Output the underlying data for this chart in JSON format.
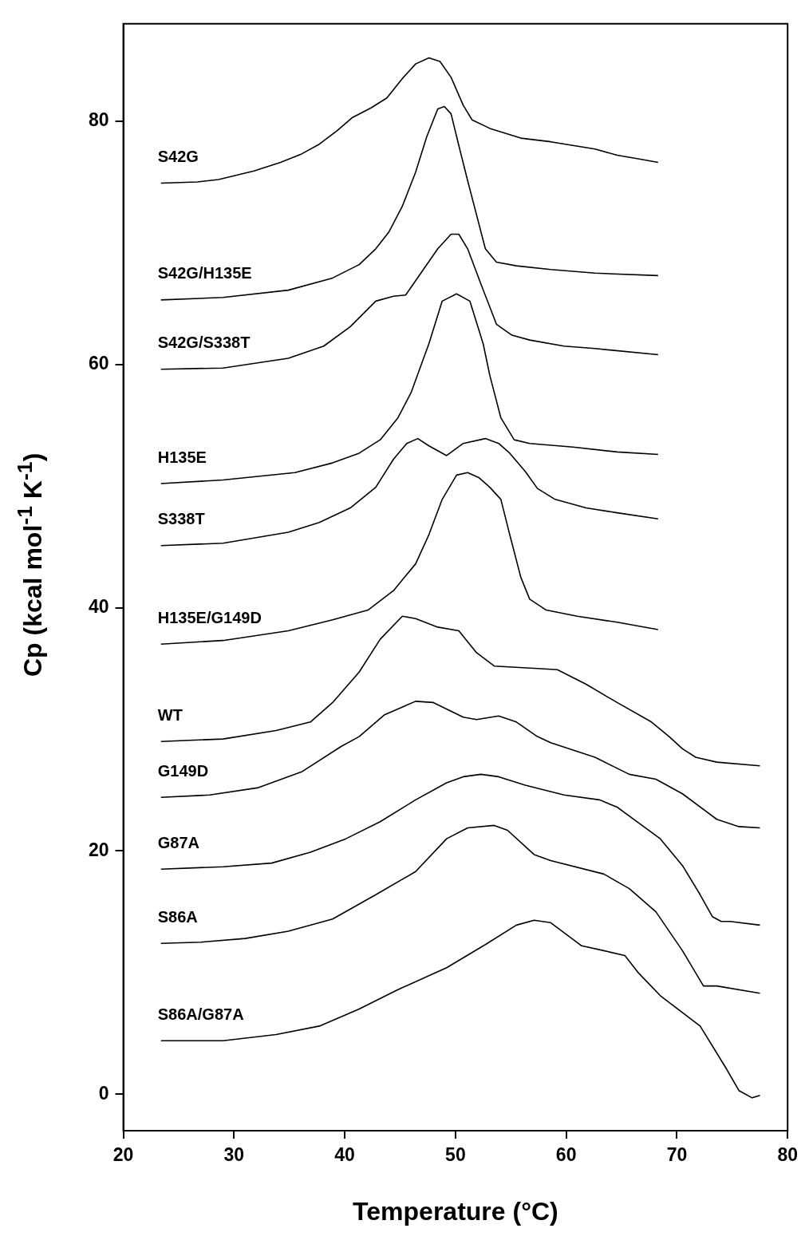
{
  "chart_data": {
    "type": "line",
    "xlabel": "Temperature (°C)",
    "ylabel": "Cp (kcal mol$^{-1}$ K$^{-1}$)",
    "xlim": [
      20,
      80
    ],
    "ylim": [
      -3,
      88
    ],
    "xticks": [
      20,
      30,
      40,
      50,
      60,
      70,
      80
    ],
    "yticks": [
      0,
      20,
      40,
      60,
      80
    ],
    "grid": false,
    "legend": false,
    "marker": "none",
    "line_style": "solid",
    "series": [
      {
        "name": "S42G",
        "color": "#000000",
        "x": [
          23.4,
          26.7,
          28.6,
          31.8,
          34.2,
          36.1,
          37.7,
          39.3,
          40.7,
          42.4,
          43.8,
          45.2,
          46.4,
          47.6,
          48.6,
          49.6,
          50.7,
          51.5,
          53.1,
          55.9,
          58.6,
          60.6,
          62.6,
          64.6,
          66.5,
          68.3
        ],
        "values": [
          74.9,
          75.0,
          75.2,
          75.9,
          76.6,
          77.3,
          78.1,
          79.2,
          80.3,
          81.1,
          81.9,
          83.5,
          84.7,
          85.2,
          84.9,
          83.6,
          81.3,
          80.1,
          79.4,
          78.6,
          78.3,
          78.0,
          77.7,
          77.2,
          76.9,
          76.6
        ]
      },
      {
        "name": "S42G/H135E",
        "color": "#000000",
        "x": [
          23.4,
          29.0,
          34.9,
          38.9,
          41.3,
          42.8,
          44.0,
          45.2,
          46.4,
          47.4,
          48.4,
          49.0,
          49.6,
          50.3,
          51.1,
          51.9,
          52.7,
          53.7,
          55.5,
          58.6,
          62.6,
          68.3
        ],
        "values": [
          65.3,
          65.5,
          66.1,
          67.1,
          68.2,
          69.5,
          70.9,
          73.0,
          75.8,
          78.7,
          81.0,
          81.2,
          80.6,
          78.0,
          75.1,
          72.3,
          69.5,
          68.4,
          68.1,
          67.8,
          67.5,
          67.3
        ]
      },
      {
        "name": "S42G/S338T",
        "color": "#000000",
        "x": [
          23.4,
          29.0,
          34.9,
          38.1,
          40.5,
          42.8,
          44.4,
          45.5,
          46.8,
          48.4,
          49.6,
          50.3,
          51.1,
          52.3,
          53.7,
          55.1,
          56.7,
          59.8,
          62.6,
          68.3
        ],
        "values": [
          59.6,
          59.7,
          60.5,
          61.5,
          63.1,
          65.2,
          65.6,
          65.7,
          67.4,
          69.5,
          70.7,
          70.7,
          69.5,
          66.6,
          63.3,
          62.4,
          62.0,
          61.5,
          61.3,
          60.8
        ]
      },
      {
        "name": "H135E",
        "color": "#000000",
        "x": [
          23.4,
          29.0,
          35.5,
          38.9,
          41.3,
          43.2,
          44.8,
          46.0,
          47.0,
          47.6,
          48.8,
          50.1,
          51.3,
          52.5,
          53.1,
          54.1,
          55.3,
          56.7,
          60.6,
          64.6,
          68.3
        ],
        "values": [
          50.2,
          50.5,
          51.1,
          51.9,
          52.7,
          53.8,
          55.6,
          57.7,
          60.2,
          61.7,
          65.2,
          65.8,
          65.2,
          61.7,
          59.1,
          55.6,
          53.8,
          53.5,
          53.2,
          52.8,
          52.6
        ]
      },
      {
        "name": "S338T",
        "color": "#000000",
        "x": [
          23.4,
          29.0,
          34.9,
          37.7,
          40.5,
          42.8,
          44.4,
          45.6,
          46.6,
          47.6,
          49.2,
          50.7,
          52.7,
          53.9,
          54.9,
          56.3,
          57.4,
          59.0,
          61.8,
          64.6,
          68.3
        ],
        "values": [
          45.1,
          45.3,
          46.2,
          47.0,
          48.2,
          49.9,
          52.2,
          53.5,
          53.9,
          53.3,
          52.5,
          53.5,
          53.9,
          53.5,
          52.7,
          51.2,
          49.8,
          48.9,
          48.2,
          47.8,
          47.3
        ]
      },
      {
        "name": "H135E/G149D",
        "color": "#000000",
        "x": [
          23.4,
          29.0,
          34.9,
          38.9,
          42.1,
          44.4,
          46.4,
          47.6,
          48.8,
          50.1,
          51.1,
          52.1,
          53.1,
          54.1,
          54.9,
          55.9,
          56.7,
          58.2,
          61.0,
          64.6,
          68.3
        ],
        "values": [
          37.0,
          37.3,
          38.1,
          39.0,
          39.8,
          41.4,
          43.6,
          46.0,
          48.9,
          50.9,
          51.1,
          50.7,
          49.9,
          48.9,
          46.0,
          42.5,
          40.7,
          39.8,
          39.3,
          38.8,
          38.2
        ]
      },
      {
        "name": "WT",
        "color": "#000000",
        "x": [
          23.4,
          29.0,
          33.8,
          36.9,
          38.9,
          41.3,
          43.2,
          45.2,
          46.4,
          48.4,
          50.3,
          51.9,
          53.5,
          57.4,
          59.2,
          61.8,
          64.6,
          67.7,
          69.3,
          70.5,
          71.7,
          73.6,
          77.5
        ],
        "values": [
          29.0,
          29.2,
          29.9,
          30.6,
          32.2,
          34.7,
          37.4,
          39.3,
          39.1,
          38.4,
          38.1,
          36.3,
          35.2,
          35.0,
          34.9,
          33.7,
          32.2,
          30.6,
          29.4,
          28.4,
          27.7,
          27.3,
          27.0
        ]
      },
      {
        "name": "G149D",
        "color": "#000000",
        "x": [
          23.4,
          27.8,
          32.2,
          36.1,
          39.7,
          41.3,
          43.6,
          46.4,
          48.0,
          50.7,
          51.9,
          53.9,
          55.5,
          57.4,
          58.6,
          62.6,
          65.7,
          68.1,
          70.5,
          73.6,
          75.6,
          77.5
        ],
        "values": [
          24.4,
          24.6,
          25.2,
          26.5,
          28.6,
          29.4,
          31.2,
          32.3,
          32.2,
          31.0,
          30.8,
          31.1,
          30.6,
          29.4,
          28.9,
          27.7,
          26.3,
          25.9,
          24.7,
          22.6,
          22.0,
          21.9
        ]
      },
      {
        "name": "G87A",
        "color": "#000000",
        "x": [
          23.4,
          29.0,
          33.4,
          36.9,
          40.1,
          43.2,
          46.4,
          49.2,
          50.7,
          52.3,
          53.9,
          56.3,
          59.8,
          63.0,
          64.6,
          68.5,
          70.5,
          72.1,
          73.2,
          74.0,
          74.8,
          77.5
        ],
        "values": [
          18.5,
          18.7,
          19.0,
          19.9,
          21.0,
          22.4,
          24.2,
          25.6,
          26.1,
          26.3,
          26.1,
          25.4,
          24.6,
          24.2,
          23.6,
          21.0,
          18.8,
          16.4,
          14.6,
          14.2,
          14.2,
          13.9
        ]
      },
      {
        "name": "S86A",
        "color": "#000000",
        "x": [
          23.4,
          27.0,
          31.0,
          34.9,
          38.9,
          42.8,
          46.4,
          49.2,
          51.1,
          53.5,
          54.7,
          57.1,
          58.6,
          63.4,
          65.7,
          68.1,
          70.5,
          72.4,
          73.6,
          77.5
        ],
        "values": [
          12.4,
          12.5,
          12.8,
          13.4,
          14.4,
          16.4,
          18.3,
          21.0,
          21.9,
          22.1,
          21.7,
          19.7,
          19.2,
          18.1,
          16.9,
          15.0,
          11.8,
          8.9,
          8.9,
          8.3
        ]
      },
      {
        "name": "S86A/G87A",
        "color": "#000000",
        "x": [
          23.4,
          29.0,
          33.8,
          37.7,
          41.3,
          44.8,
          49.2,
          52.7,
          55.5,
          57.1,
          58.6,
          61.4,
          63.4,
          65.3,
          66.5,
          68.5,
          72.1,
          74.4,
          75.6,
          76.8,
          77.5
        ],
        "values": [
          4.4,
          4.4,
          4.9,
          5.6,
          7.0,
          8.6,
          10.4,
          12.3,
          13.9,
          14.3,
          14.1,
          12.2,
          11.8,
          11.4,
          10.0,
          8.1,
          5.6,
          2.2,
          0.3,
          -0.3,
          -0.1
        ]
      }
    ]
  }
}
